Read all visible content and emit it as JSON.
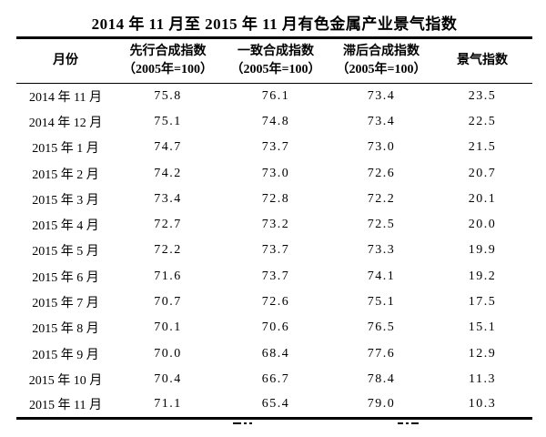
{
  "title": "2014 年 11 月至 2015 年 11 月有色金属产业景气指数",
  "table": {
    "columns": [
      {
        "label": "月份",
        "sub": ""
      },
      {
        "label": "先行合成指数",
        "sub": "（2005年=100）"
      },
      {
        "label": "一致合成指数",
        "sub": "（2005年=100）"
      },
      {
        "label": "滞后合成指数",
        "sub": "（2005年=100）"
      },
      {
        "label": "景气指数",
        "sub": ""
      }
    ],
    "rows": [
      [
        "2014 年 11 月",
        "75.8",
        "76.1",
        "73.4",
        "23.5"
      ],
      [
        "2014 年 12 月",
        "75.1",
        "74.8",
        "73.4",
        "22.5"
      ],
      [
        "2015 年 1 月",
        "74.7",
        "73.7",
        "73.0",
        "21.5"
      ],
      [
        "2015 年 2 月",
        "74.2",
        "73.0",
        "72.6",
        "20.7"
      ],
      [
        "2015 年 3 月",
        "73.4",
        "72.8",
        "72.2",
        "20.1"
      ],
      [
        "2015 年 4 月",
        "72.7",
        "73.2",
        "72.5",
        "20.0"
      ],
      [
        "2015 年 5 月",
        "72.2",
        "73.7",
        "73.3",
        "19.9"
      ],
      [
        "2015 年 6 月",
        "71.6",
        "73.7",
        "74.1",
        "19.2"
      ],
      [
        "2015 年 7 月",
        "70.7",
        "72.6",
        "75.1",
        "17.5"
      ],
      [
        "2015 年 8 月",
        "70.1",
        "70.6",
        "76.5",
        "15.1"
      ],
      [
        "2015 年 9 月",
        "70.0",
        "68.4",
        "77.6",
        "12.9"
      ],
      [
        "2015 年 10 月",
        "70.4",
        "66.7",
        "78.4",
        "11.3"
      ],
      [
        "2015 年 11 月",
        "71.1",
        "65.4",
        "79.0",
        "10.3"
      ]
    ]
  },
  "colors": {
    "text": "#000000",
    "background": "#ffffff",
    "rule": "#000000"
  }
}
